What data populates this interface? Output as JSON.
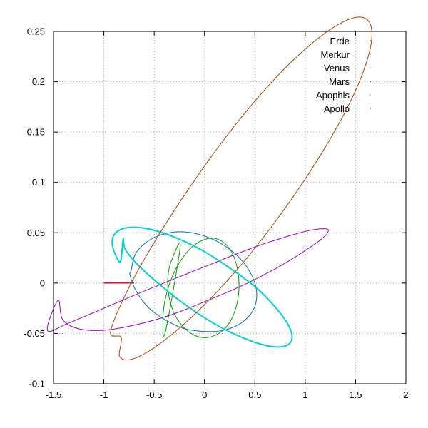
{
  "chart_data": {
    "type": "line",
    "title": "",
    "xlabel": "",
    "ylabel": "",
    "xlim": [
      -1.5,
      2
    ],
    "ylim": [
      -0.1,
      0.25
    ],
    "x_ticks": [
      -1.5,
      -1,
      -0.5,
      0,
      0.5,
      1,
      1.5,
      2
    ],
    "y_ticks": [
      -0.1,
      -0.05,
      0,
      0.05,
      0.1,
      0.15,
      0.2,
      0.25
    ],
    "x_tick_labels": [
      "-1.5",
      "-1",
      "-0.5",
      "0",
      "0.5",
      "1",
      "1.5",
      "2"
    ],
    "y_tick_labels": [
      "-0.1",
      "-0.05",
      "0",
      "0.05",
      "0.1",
      "0.15",
      "0.2",
      "0.25"
    ],
    "grid": true,
    "legend_position": "top-right",
    "series": [
      {
        "name": "Erde",
        "color": "#cc0000",
        "points": [
          [
            -1.0,
            0.0
          ],
          [
            -0.7,
            0.0
          ]
        ]
      },
      {
        "name": "Merkur",
        "color": "#0072bd",
        "points": [
          [
            -0.73,
            0.012
          ],
          [
            -0.691,
            0.028
          ],
          [
            -0.587,
            0.04
          ],
          [
            -0.431,
            0.048
          ],
          [
            -0.242,
            0.051
          ],
          [
            -0.04,
            0.048
          ],
          [
            0.152,
            0.04
          ],
          [
            0.317,
            0.028
          ],
          [
            0.44,
            0.013
          ],
          [
            0.508,
            -0.003
          ],
          [
            0.514,
            -0.018
          ],
          [
            0.457,
            -0.031
          ],
          [
            0.343,
            -0.041
          ],
          [
            0.182,
            -0.047
          ],
          [
            -0.008,
            -0.048
          ],
          [
            -0.208,
            -0.045
          ],
          [
            -0.398,
            -0.036
          ],
          [
            -0.56,
            -0.024
          ],
          [
            -0.678,
            -0.008
          ],
          [
            -0.741,
            0.008
          ]
        ]
      },
      {
        "name": "Venus",
        "color": "#00a000",
        "points": [
          [
            -0.39,
            -0.049
          ],
          [
            -0.413,
            -0.036
          ],
          [
            -0.392,
            -0.017
          ],
          [
            -0.33,
            0.004
          ],
          [
            -0.232,
            0.023
          ],
          [
            -0.11,
            0.037
          ],
          [
            0.023,
            0.044
          ],
          [
            0.147,
            0.043
          ],
          [
            0.25,
            0.034
          ],
          [
            0.318,
            0.018
          ],
          [
            0.343,
            -0.002
          ],
          [
            0.321,
            -0.021
          ],
          [
            0.256,
            -0.038
          ],
          [
            0.156,
            -0.049
          ],
          [
            0.033,
            -0.054
          ],
          [
            -0.096,
            -0.052
          ],
          [
            -0.215,
            -0.043
          ],
          [
            -0.306,
            -0.029
          ],
          [
            -0.357,
            -0.011
          ],
          [
            -0.363,
            0.007
          ],
          [
            -0.322,
            0.024
          ],
          [
            -0.242,
            0.036
          ]
        ]
      },
      {
        "name": "Mars",
        "color": "#a000c0",
        "points": [
          [
            -1.455,
            -0.017
          ],
          [
            -1.411,
            -0.036
          ],
          [
            -1.263,
            -0.045
          ],
          [
            -1.022,
            -0.047
          ],
          [
            -0.708,
            -0.042
          ],
          [
            -0.345,
            -0.032
          ],
          [
            0.036,
            -0.017
          ],
          [
            0.406,
            -0.001
          ],
          [
            0.735,
            0.016
          ],
          [
            0.995,
            0.032
          ],
          [
            1.165,
            0.044
          ],
          [
            1.23,
            0.052
          ],
          [
            1.183,
            0.054
          ],
          [
            1.028,
            0.052
          ],
          [
            0.777,
            0.045
          ],
          [
            0.449,
            0.034
          ],
          [
            0.07,
            0.019
          ],
          [
            -0.33,
            0.003
          ],
          [
            -0.72,
            -0.013
          ],
          [
            -1.071,
            -0.028
          ],
          [
            -1.357,
            -0.04
          ],
          [
            -1.56,
            -0.047
          ]
        ]
      },
      {
        "name": "Apophis",
        "color": "#00d0d8",
        "points": [
          [
            -0.808,
            0.044
          ],
          [
            -0.79,
            0.034
          ],
          [
            -0.67,
            0.019
          ],
          [
            -0.463,
            0.0
          ],
          [
            -0.198,
            -0.021
          ],
          [
            0.092,
            -0.04
          ],
          [
            0.373,
            -0.054
          ],
          [
            0.612,
            -0.062
          ],
          [
            0.782,
            -0.063
          ],
          [
            0.864,
            -0.057
          ],
          [
            0.849,
            -0.045
          ],
          [
            0.737,
            -0.028
          ],
          [
            0.54,
            -0.007
          ],
          [
            0.279,
            0.013
          ],
          [
            -0.014,
            0.032
          ],
          [
            -0.307,
            0.046
          ],
          [
            -0.568,
            0.054
          ],
          [
            -0.77,
            0.055
          ],
          [
            -0.89,
            0.049
          ],
          [
            -0.914,
            0.037
          ],
          [
            -0.838,
            0.021
          ]
        ]
      },
      {
        "name": "Apollo",
        "color": "#b04000",
        "points": [
          [
            -0.827,
            -0.054
          ],
          [
            -0.842,
            -0.073
          ],
          [
            -0.702,
            -0.075
          ],
          [
            -0.428,
            -0.059
          ],
          [
            -0.057,
            -0.027
          ],
          [
            0.363,
            0.018
          ],
          [
            0.783,
            0.072
          ],
          [
            1.157,
            0.128
          ],
          [
            1.447,
            0.18
          ],
          [
            1.62,
            0.223
          ],
          [
            1.66,
            0.252
          ],
          [
            1.566,
            0.264
          ],
          [
            1.349,
            0.258
          ],
          [
            1.03,
            0.235
          ],
          [
            0.643,
            0.197
          ],
          [
            0.227,
            0.147
          ],
          [
            -0.175,
            0.091
          ],
          [
            -0.526,
            0.036
          ],
          [
            -0.788,
            -0.012
          ],
          [
            -0.934,
            -0.049
          ]
        ]
      }
    ]
  }
}
